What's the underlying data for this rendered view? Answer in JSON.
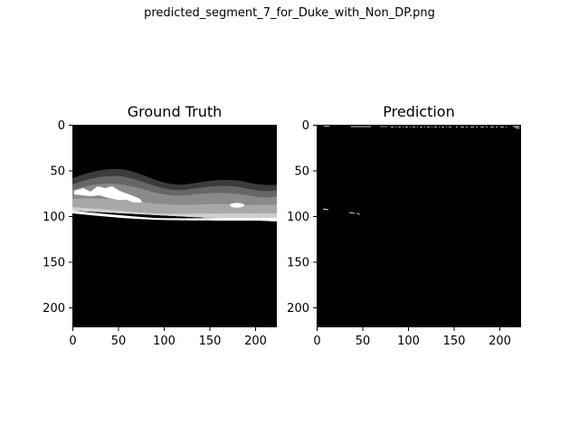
{
  "figure": {
    "suptitle": "predicted_segment_7_for_Duke_with_Non_DP.png"
  },
  "panels": [
    {
      "title": "Ground Truth",
      "x_ticks": [
        "0",
        "50",
        "100",
        "150",
        "200"
      ],
      "y_ticks": [
        "0",
        "50",
        "100",
        "150",
        "200"
      ]
    },
    {
      "title": "Prediction",
      "x_ticks": [
        "0",
        "50",
        "100",
        "150",
        "200"
      ],
      "y_ticks": [
        "0",
        "50",
        "100",
        "150",
        "200"
      ]
    }
  ],
  "colors": {
    "background": "#000000",
    "layer_dark": "#3c3c3c",
    "layer_mid": "#666666",
    "layer_light": "#8a8a8a",
    "layer_lighter": "#a8a8a8",
    "layer_pale": "#cfcfcf",
    "highlight": "#ffffff"
  }
}
